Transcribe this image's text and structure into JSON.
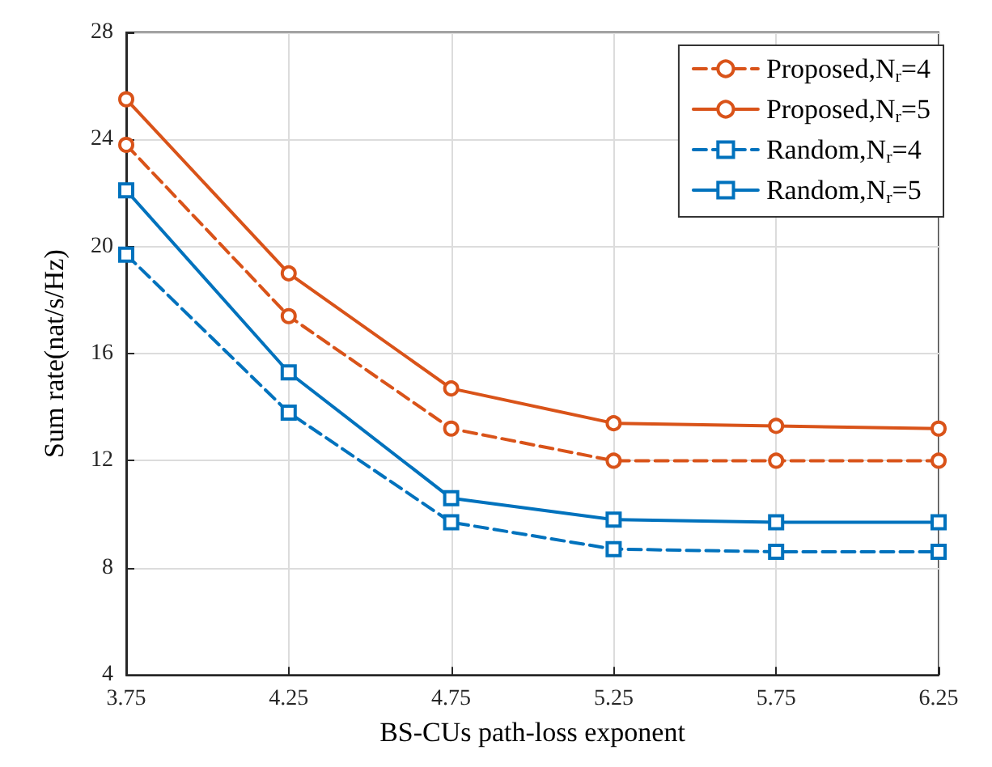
{
  "chart_data": {
    "type": "line",
    "xlabel": "BS-CUs path-loss exponent",
    "ylabel": "Sum rate(nat/s/Hz)",
    "x": [
      3.75,
      4.25,
      4.75,
      5.25,
      5.75,
      6.25
    ],
    "series": [
      {
        "name": "Proposed,N$_{r}$=4",
        "color": "#d95319",
        "marker": "circle",
        "line_style": "dashed",
        "values": [
          23.8,
          17.4,
          13.2,
          12.0,
          12.0,
          12.0
        ]
      },
      {
        "name": "Proposed,N$_{r}$=5",
        "color": "#d95319",
        "marker": "circle",
        "line_style": "solid",
        "values": [
          25.5,
          19.0,
          14.7,
          13.4,
          13.3,
          13.2
        ]
      },
      {
        "name": "Random,N$_{r}$=4",
        "color": "#0072bd",
        "marker": "square",
        "line_style": "dashed",
        "values": [
          19.7,
          13.8,
          9.7,
          8.7,
          8.6,
          8.6
        ]
      },
      {
        "name": "Random,N$_{r}$=5",
        "color": "#0072bd",
        "marker": "square",
        "line_style": "solid",
        "values": [
          22.1,
          15.3,
          10.6,
          9.8,
          9.7,
          9.7
        ]
      }
    ],
    "xlim": [
      3.75,
      6.25
    ],
    "xticks": [
      3.75,
      4.25,
      4.75,
      5.25,
      5.75,
      6.25
    ],
    "ylim": [
      4,
      28
    ],
    "yticks": [
      4,
      8,
      12,
      16,
      20,
      24,
      28
    ],
    "grid": true,
    "legend": "top right"
  }
}
